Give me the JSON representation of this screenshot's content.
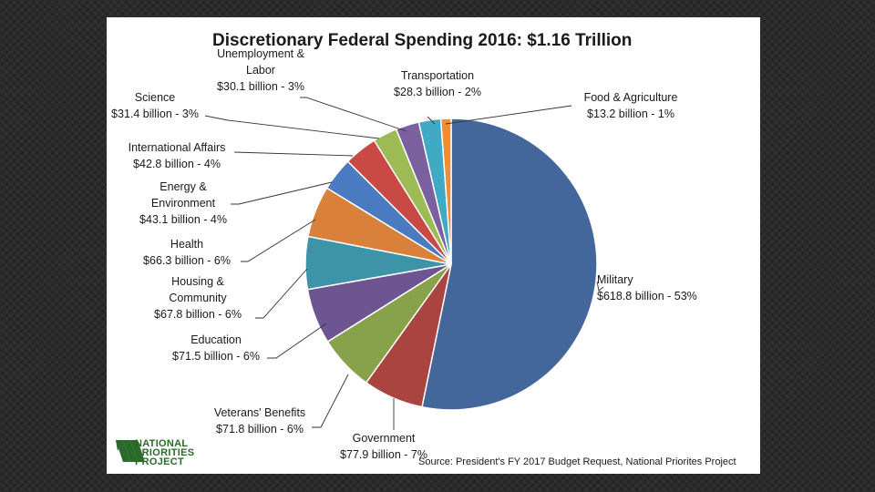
{
  "chart_data": {
    "type": "pie",
    "title": "Discretionary Federal Spending 2016: $1.16 Trillion",
    "source": "Source:  President's FY 2017 Budget  Request, National Priorites Project",
    "slices": [
      {
        "name": "Military",
        "lines": [
          "Military",
          "$618.8 billion - 53%"
        ],
        "value": 618.8,
        "percent": 53,
        "color": "#44679b"
      },
      {
        "name": "Government",
        "lines": [
          "Government",
          "$77.9 billion - 7%"
        ],
        "value": 77.9,
        "percent": 7,
        "color": "#a94440"
      },
      {
        "name": "Veterans' Benefits",
        "lines": [
          "Veterans' Benefits",
          "$71.8 billion - 6%"
        ],
        "value": 71.8,
        "percent": 6,
        "color": "#87a24a"
      },
      {
        "name": "Education",
        "lines": [
          "Education",
          "$71.5 billion - 6%"
        ],
        "value": 71.5,
        "percent": 6,
        "color": "#6c5591"
      },
      {
        "name": "Housing & Community",
        "lines": [
          "Housing &",
          "Community",
          "$67.8 billion - 6%"
        ],
        "value": 67.8,
        "percent": 6,
        "color": "#3d93a8"
      },
      {
        "name": "Health",
        "lines": [
          "Health",
          "$66.3 billion - 6%"
        ],
        "value": 66.3,
        "percent": 6,
        "color": "#d9803a"
      },
      {
        "name": "Energy & Environment",
        "lines": [
          "Energy &",
          "Environment",
          "$43.1 billion - 4%"
        ],
        "value": 43.1,
        "percent": 4,
        "color": "#4a7bc0"
      },
      {
        "name": "International Affairs",
        "lines": [
          "International  Affairs",
          "$42.8 billion - 4%"
        ],
        "value": 42.8,
        "percent": 4,
        "color": "#c94a45"
      },
      {
        "name": "Science",
        "lines": [
          "Science",
          "$31.4 billion - 3%"
        ],
        "value": 31.4,
        "percent": 3,
        "color": "#9cbb55"
      },
      {
        "name": "Unemployment & Labor",
        "lines": [
          "Unemployment  &",
          "Labor",
          "$30.1 billion - 3%"
        ],
        "value": 30.1,
        "percent": 3,
        "color": "#7b60a0"
      },
      {
        "name": "Transportation",
        "lines": [
          "Transportation",
          "$28.3 billion - 2%"
        ],
        "value": 28.3,
        "percent": 2,
        "color": "#40aac4"
      },
      {
        "name": "Food & Agriculture",
        "lines": [
          "Food & Agriculture",
          "$13.2 billion - 1%"
        ],
        "value": 13.2,
        "percent": 1,
        "color": "#f08d37"
      }
    ]
  },
  "logo": {
    "lines": [
      "NATIONAL",
      "PRIORITIES",
      "PROJECT"
    ],
    "color": "#2a6a2a"
  }
}
